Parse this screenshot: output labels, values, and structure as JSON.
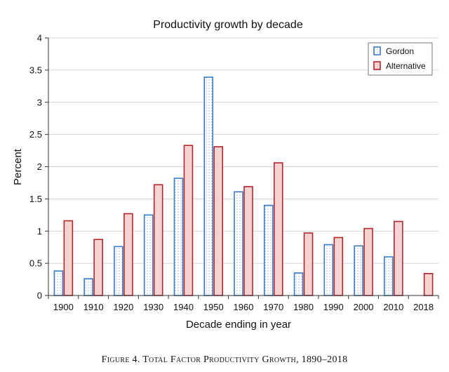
{
  "caption": "Figure 4. Total Factor Productivity Growth, 1890–2018",
  "chart_data": {
    "type": "bar",
    "title": "Productivity growth by decade",
    "xlabel": "Decade ending in year",
    "ylabel": "Percent",
    "categories": [
      "1900",
      "1910",
      "1920",
      "1930",
      "1940",
      "1950",
      "1960",
      "1970",
      "1980",
      "1990",
      "2000",
      "2010",
      "2018"
    ],
    "ylim": [
      0,
      4
    ],
    "yticks": [
      "0",
      "0.5",
      "1",
      "1.5",
      "2",
      "2.5",
      "3",
      "3.5",
      "4"
    ],
    "grid": true,
    "legend_position": "top-right",
    "series": [
      {
        "name": "Gordon",
        "color": "#3b7bc8",
        "fill": "#ffffff",
        "pattern": "dotted",
        "values": [
          0.38,
          0.26,
          0.76,
          1.25,
          1.82,
          3.39,
          1.61,
          1.4,
          0.35,
          0.79,
          0.77,
          0.6,
          null
        ]
      },
      {
        "name": "Alternative",
        "color": "#b2262b",
        "fill": "#f5d3d3",
        "pattern": "solid",
        "values": [
          1.16,
          0.87,
          1.27,
          1.72,
          2.33,
          2.31,
          1.69,
          2.06,
          0.97,
          0.9,
          1.04,
          1.15,
          0.34
        ]
      }
    ]
  }
}
